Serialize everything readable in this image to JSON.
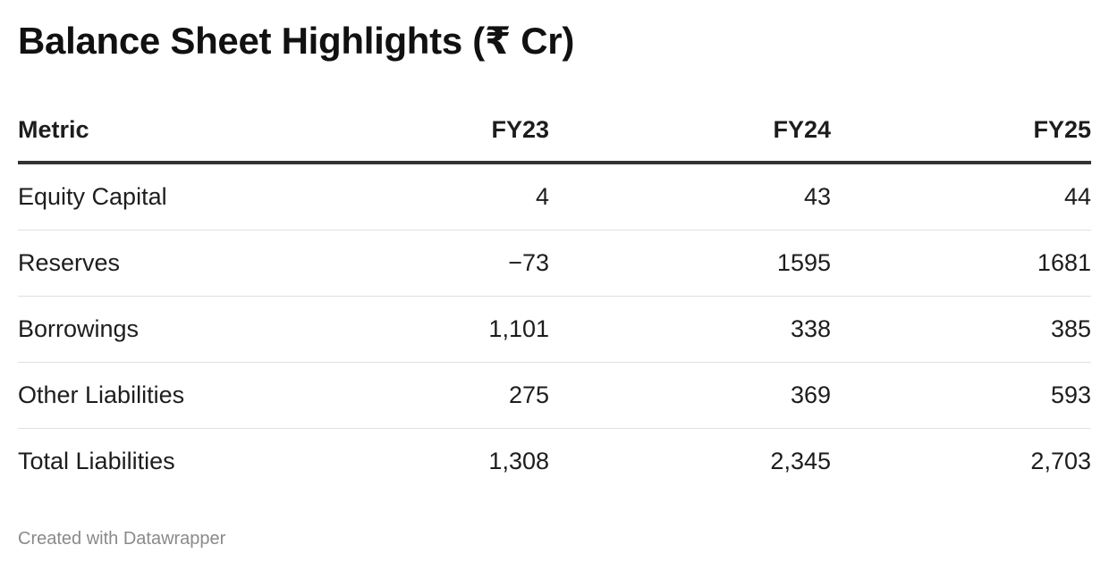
{
  "title": "Balance Sheet Highlights (₹ Cr)",
  "table": {
    "headers": [
      "Metric",
      "FY23",
      "FY24",
      "FY25"
    ],
    "rows": [
      [
        "Equity Capital",
        "4",
        "43",
        "44"
      ],
      [
        "Reserves",
        "−73",
        "1595",
        "1681"
      ],
      [
        "Borrowings",
        "1,101",
        "338",
        "385"
      ],
      [
        "Other Liabilities",
        "275",
        "369",
        "593"
      ],
      [
        "Total Liabilities",
        "1,308",
        "2,345",
        "2,703"
      ]
    ]
  },
  "footer": "Created with Datawrapper"
}
